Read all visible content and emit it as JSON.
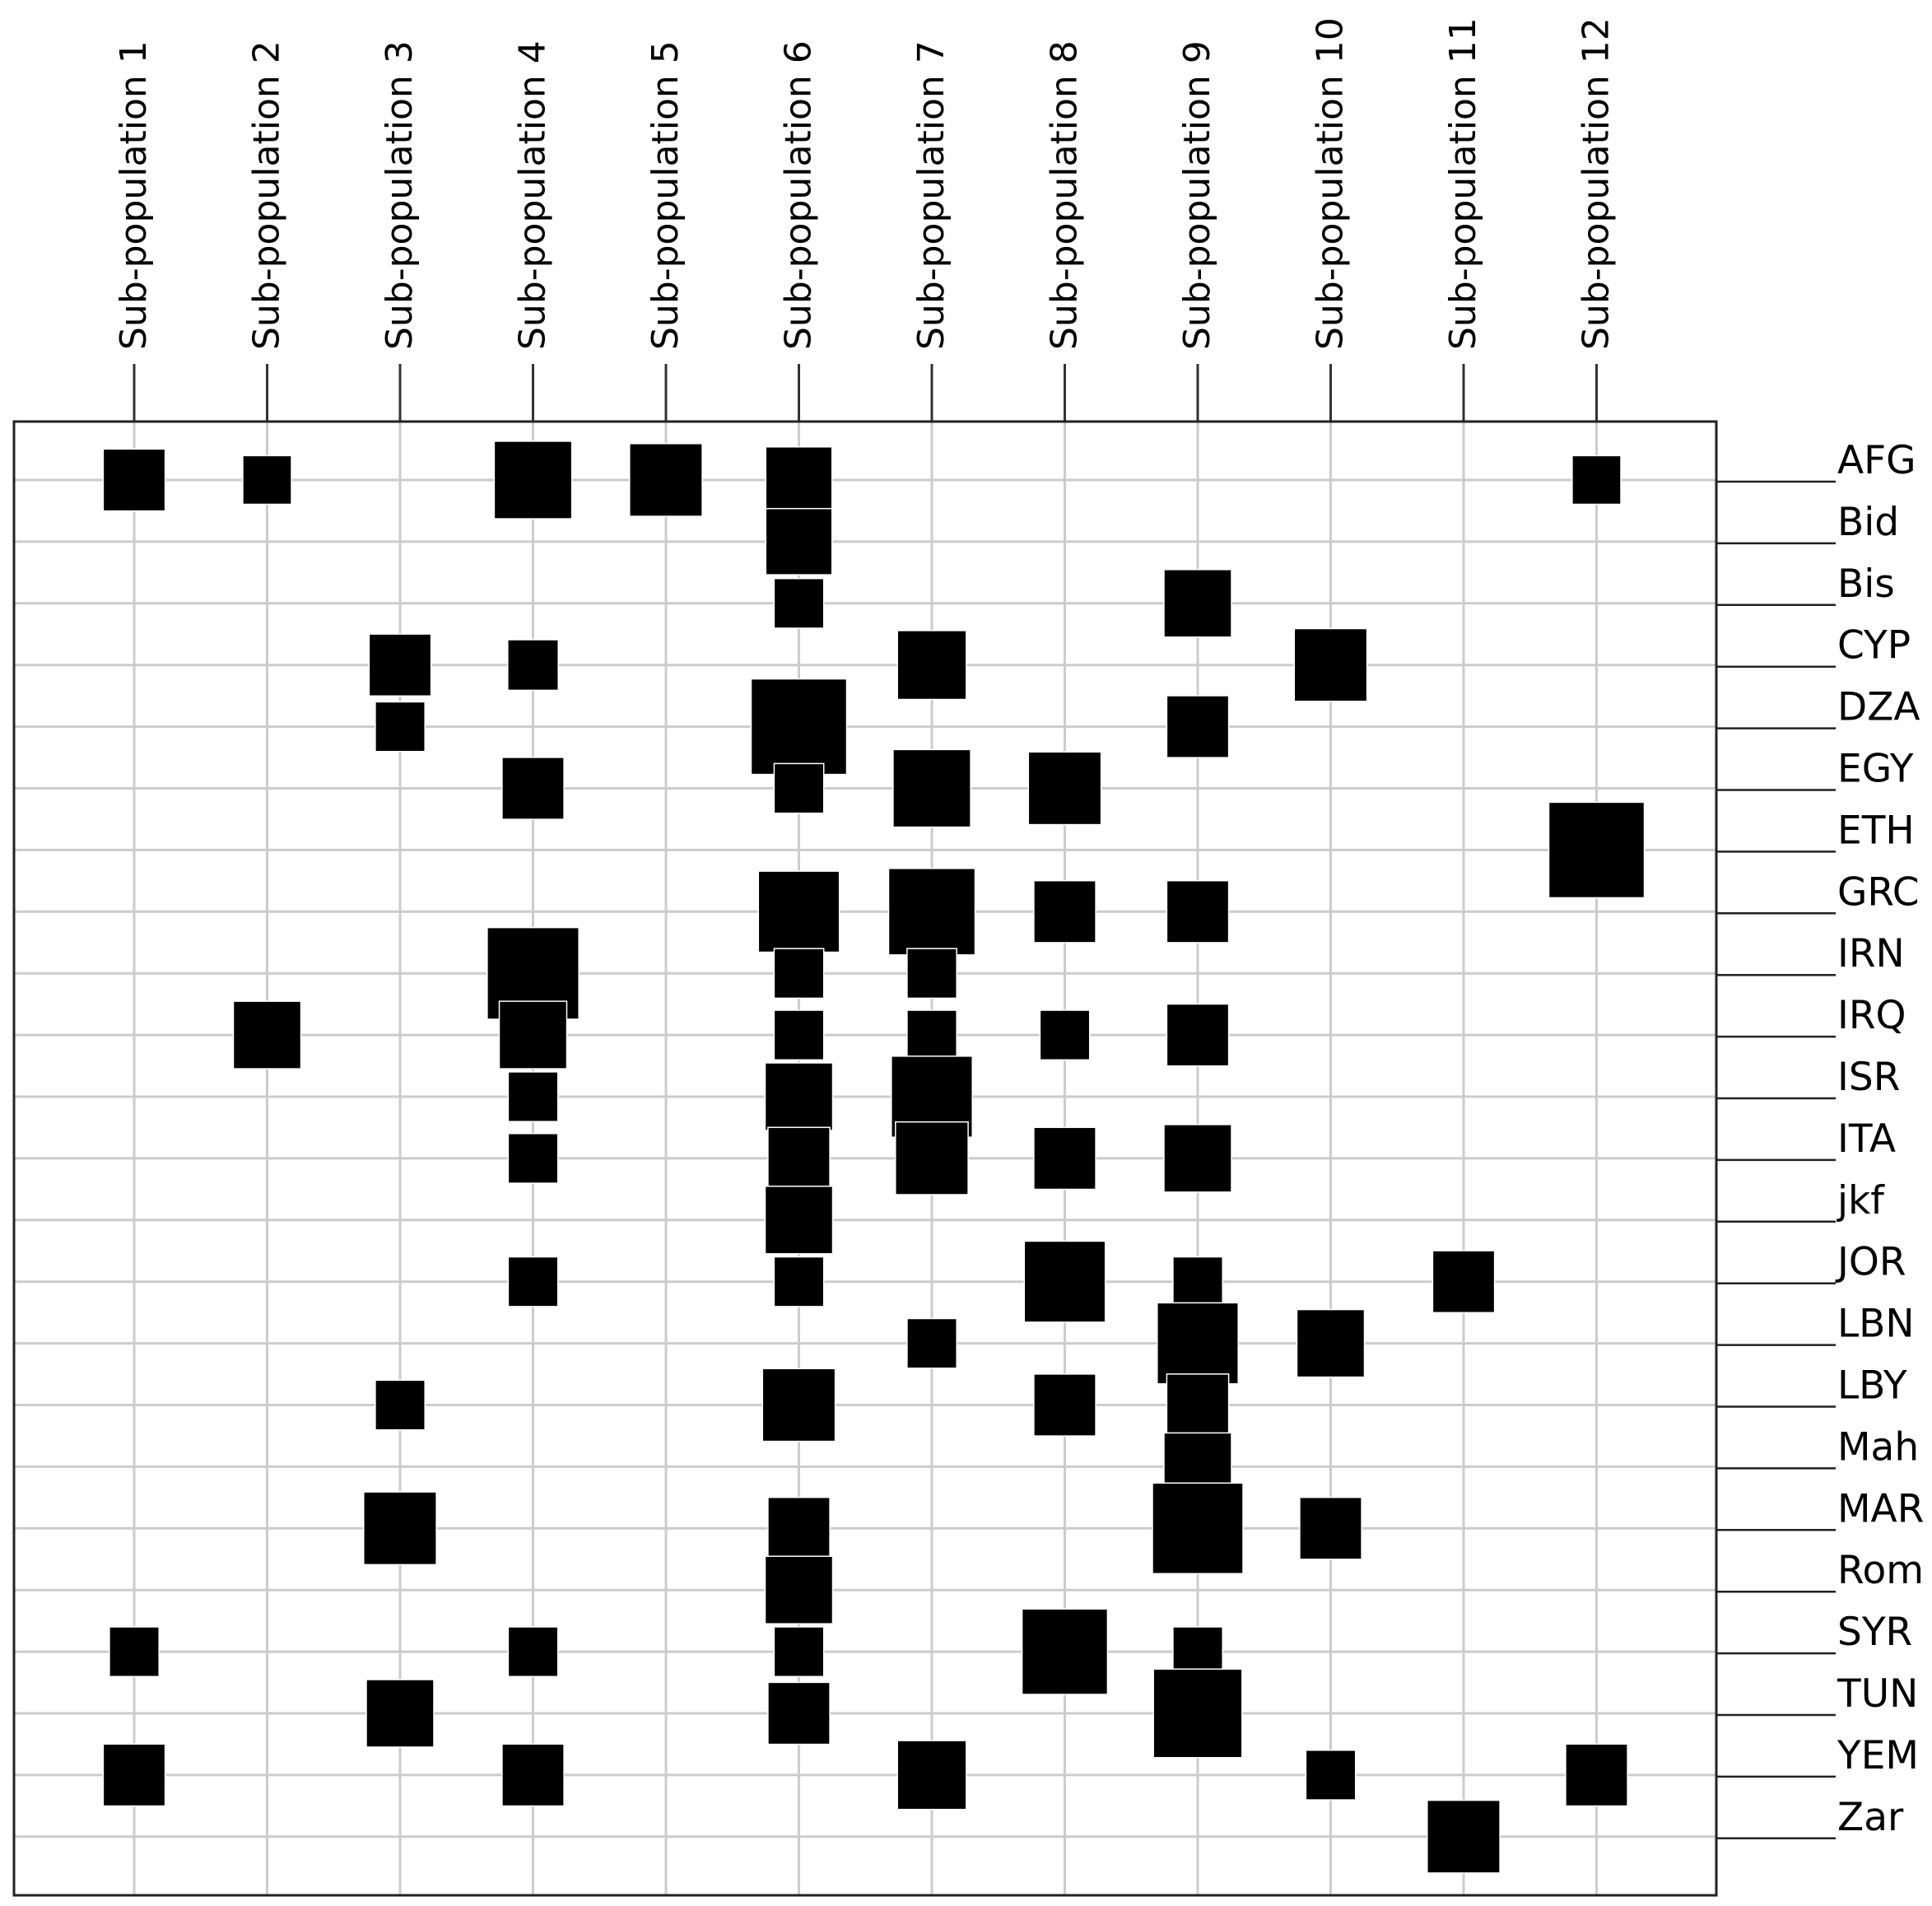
{
  "chart_data": {
    "type": "heatmap",
    "encoding": "square size proportional to value",
    "columns": [
      "Sub-population 1",
      "Sub-population 2",
      "Sub-population 3",
      "Sub-population 4",
      "Sub-population 5",
      "Sub-population 6",
      "Sub-population 7",
      "Sub-population 8",
      "Sub-population 9",
      "Sub-population 10",
      "Sub-population 11",
      "Sub-population 12"
    ],
    "rows": [
      "AFG",
      "Bid",
      "Bis",
      "CYP",
      "DZA",
      "EGY",
      "ETH",
      "GRC",
      "IRN",
      "IRQ",
      "ISR",
      "ITA",
      "jkf",
      "JOR",
      "LBN",
      "LBY",
      "Mah",
      "MAR",
      "Rom",
      "SYR",
      "TUN",
      "YEM",
      "Zar"
    ],
    "cells": [
      {
        "row": "AFG",
        "col": 1,
        "value": 0.42
      },
      {
        "row": "AFG",
        "col": 2,
        "value": 0.26
      },
      {
        "row": "AFG",
        "col": 4,
        "value": 0.66
      },
      {
        "row": "AFG",
        "col": 5,
        "value": 0.58
      },
      {
        "row": "AFG",
        "col": 6,
        "value": 0.48
      },
      {
        "row": "AFG",
        "col": 12,
        "value": 0.26
      },
      {
        "row": "Bid",
        "col": 6,
        "value": 0.48
      },
      {
        "row": "Bis",
        "col": 6,
        "value": 0.27
      },
      {
        "row": "Bis",
        "col": 9,
        "value": 0.5
      },
      {
        "row": "CYP",
        "col": 3,
        "value": 0.42
      },
      {
        "row": "CYP",
        "col": 4,
        "value": 0.28
      },
      {
        "row": "CYP",
        "col": 7,
        "value": 0.52
      },
      {
        "row": "CYP",
        "col": 10,
        "value": 0.58
      },
      {
        "row": "DZA",
        "col": 3,
        "value": 0.27
      },
      {
        "row": "DZA",
        "col": 6,
        "value": 1.0
      },
      {
        "row": "DZA",
        "col": 9,
        "value": 0.42
      },
      {
        "row": "EGY",
        "col": 4,
        "value": 0.42
      },
      {
        "row": "EGY",
        "col": 6,
        "value": 0.27
      },
      {
        "row": "EGY",
        "col": 7,
        "value": 0.66
      },
      {
        "row": "EGY",
        "col": 8,
        "value": 0.58
      },
      {
        "row": "ETH",
        "col": 12,
        "value": 1.0
      },
      {
        "row": "GRC",
        "col": 6,
        "value": 0.72
      },
      {
        "row": "GRC",
        "col": 7,
        "value": 0.82
      },
      {
        "row": "GRC",
        "col": 8,
        "value": 0.42
      },
      {
        "row": "GRC",
        "col": 9,
        "value": 0.42
      },
      {
        "row": "IRN",
        "col": 4,
        "value": 0.92
      },
      {
        "row": "IRN",
        "col": 6,
        "value": 0.27
      },
      {
        "row": "IRN",
        "col": 7,
        "value": 0.27
      },
      {
        "row": "IRQ",
        "col": 2,
        "value": 0.5
      },
      {
        "row": "IRQ",
        "col": 4,
        "value": 0.5
      },
      {
        "row": "IRQ",
        "col": 6,
        "value": 0.27
      },
      {
        "row": "IRQ",
        "col": 7,
        "value": 0.27
      },
      {
        "row": "IRQ",
        "col": 8,
        "value": 0.27
      },
      {
        "row": "IRQ",
        "col": 9,
        "value": 0.42
      },
      {
        "row": "ISR",
        "col": 4,
        "value": 0.27
      },
      {
        "row": "ISR",
        "col": 6,
        "value": 0.5
      },
      {
        "row": "ISR",
        "col": 7,
        "value": 0.72
      },
      {
        "row": "ITA",
        "col": 4,
        "value": 0.27
      },
      {
        "row": "ITA",
        "col": 6,
        "value": 0.42
      },
      {
        "row": "ITA",
        "col": 7,
        "value": 0.58
      },
      {
        "row": "ITA",
        "col": 8,
        "value": 0.42
      },
      {
        "row": "ITA",
        "col": 9,
        "value": 0.5
      },
      {
        "row": "jkf",
        "col": 6,
        "value": 0.5
      },
      {
        "row": "JOR",
        "col": 4,
        "value": 0.27
      },
      {
        "row": "JOR",
        "col": 6,
        "value": 0.27
      },
      {
        "row": "JOR",
        "col": 8,
        "value": 0.72
      },
      {
        "row": "JOR",
        "col": 9,
        "value": 0.27
      },
      {
        "row": "JOR",
        "col": 11,
        "value": 0.42
      },
      {
        "row": "LBN",
        "col": 7,
        "value": 0.27
      },
      {
        "row": "LBN",
        "col": 9,
        "value": 0.72
      },
      {
        "row": "LBN",
        "col": 10,
        "value": 0.5
      },
      {
        "row": "LBY",
        "col": 3,
        "value": 0.27
      },
      {
        "row": "LBY",
        "col": 6,
        "value": 0.58
      },
      {
        "row": "LBY",
        "col": 8,
        "value": 0.42
      },
      {
        "row": "LBY",
        "col": 9,
        "value": 0.42
      },
      {
        "row": "Mah",
        "col": 9,
        "value": 0.5
      },
      {
        "row": "MAR",
        "col": 3,
        "value": 0.58
      },
      {
        "row": "MAR",
        "col": 6,
        "value": 0.42
      },
      {
        "row": "MAR",
        "col": 9,
        "value": 0.9
      },
      {
        "row": "MAR",
        "col": 10,
        "value": 0.42
      },
      {
        "row": "Rom",
        "col": 6,
        "value": 0.5
      },
      {
        "row": "SYR",
        "col": 1,
        "value": 0.27
      },
      {
        "row": "SYR",
        "col": 4,
        "value": 0.27
      },
      {
        "row": "SYR",
        "col": 6,
        "value": 0.27
      },
      {
        "row": "SYR",
        "col": 8,
        "value": 0.8
      },
      {
        "row": "SYR",
        "col": 9,
        "value": 0.27
      },
      {
        "row": "TUN",
        "col": 3,
        "value": 0.5
      },
      {
        "row": "TUN",
        "col": 6,
        "value": 0.42
      },
      {
        "row": "TUN",
        "col": 9,
        "value": 0.86
      },
      {
        "row": "YEM",
        "col": 1,
        "value": 0.42
      },
      {
        "row": "YEM",
        "col": 4,
        "value": 0.42
      },
      {
        "row": "YEM",
        "col": 7,
        "value": 0.52
      },
      {
        "row": "YEM",
        "col": 10,
        "value": 0.27
      },
      {
        "row": "YEM",
        "col": 12,
        "value": 0.42
      },
      {
        "row": "Zar",
        "col": 11,
        "value": 0.58
      }
    ],
    "title": "",
    "xlabel": "",
    "ylabel": "",
    "grid": true,
    "column_label_position": "top",
    "row_label_position": "right"
  }
}
